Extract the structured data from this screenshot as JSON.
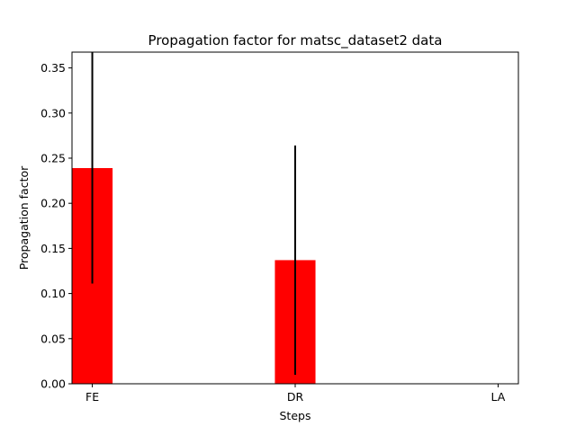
{
  "chart_data": {
    "type": "bar",
    "title": "Propagation factor for matsc_dataset2 data",
    "xlabel": "Steps",
    "ylabel": "Propagation factor",
    "categories": [
      "FE",
      "DR",
      "LA"
    ],
    "series": [
      {
        "values": [
          0.239,
          0.137,
          0.0
        ],
        "error": [
          0.128,
          0.127,
          0.0
        ]
      }
    ],
    "ylim": [
      0,
      0.3675
    ],
    "yticks": [
      "0.00",
      "0.05",
      "0.10",
      "0.15",
      "0.20",
      "0.25",
      "0.30",
      "0.35"
    ],
    "ytick_values": [
      0,
      0.05,
      0.1,
      0.15,
      0.2,
      0.25,
      0.3,
      0.35
    ],
    "bar_color": "#ff0000",
    "error_color": "#000000",
    "grid": false,
    "legend": "none"
  }
}
